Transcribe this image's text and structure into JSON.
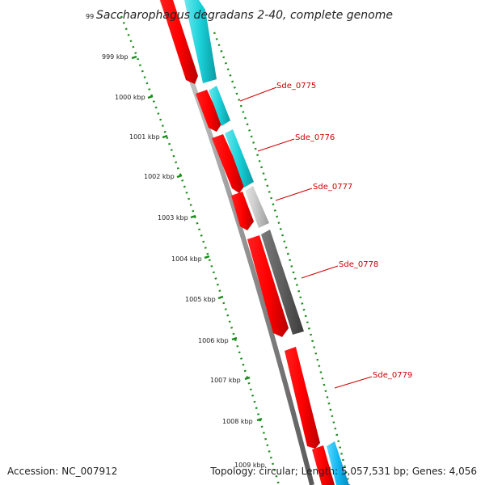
{
  "map": {
    "title": "Saccharophagus degradans 2-40, complete genome",
    "accession": "Accession: NC_007912",
    "summary": "Topology: circular; Length: 5,057,531 bp; Genes: 4,056",
    "tick_labels": [
      "99",
      "999 kbp",
      "1000 kbp",
      "1001 kbp",
      "1002 kbp",
      "1003 kbp",
      "1004 kbp",
      "1005 kbp",
      "1006 kbp",
      "1007 kbp",
      "1008 kbp",
      "1009 kbp"
    ],
    "genes": [
      "Sde_0775",
      "Sde_0776",
      "Sde_0777",
      "Sde_0778",
      "Sde_0779"
    ],
    "colors": {
      "backbone": "#8c8c8c",
      "forward_gene": "#ff0000",
      "reverse_gene": "#00c8d2",
      "uncharacterized_gene": "#c8c8c8",
      "pseudo_gene": "#646464",
      "tick": "#1a8c1a",
      "label": "#cc0000",
      "blue_gene": "#00b4f0"
    }
  }
}
